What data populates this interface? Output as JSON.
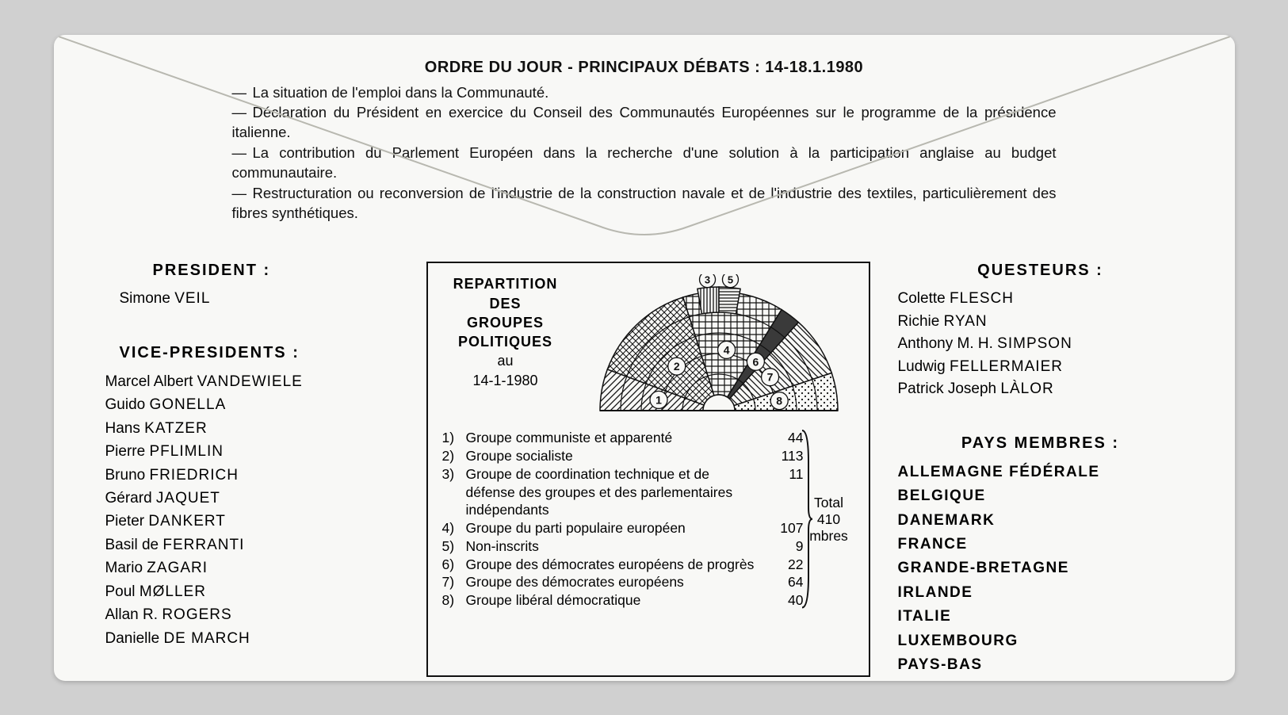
{
  "header": {
    "title": "ORDRE DU JOUR - PRINCIPAUX DÉBATS : 14-18.1.1980",
    "items": [
      "La situation de l'emploi dans la Communauté.",
      "Déclaration du Président en exercice du Conseil des Communautés Européennes sur le programme de la présidence italienne.",
      "La contribution du Parlement Européen dans la recherche d'une solution à la participation anglaise au budget communautaire.",
      "Restructuration ou reconversion de l'industrie de la construction navale et de l'industrie des textiles, particulièrement des fibres synthétiques."
    ]
  },
  "president": {
    "heading": "PRESIDENT :",
    "name_first": "Simone",
    "name_last": "VEIL"
  },
  "vice_presidents": {
    "heading": "VICE-PRESIDENTS :",
    "list": [
      {
        "first": "Marcel Albert",
        "last": "VANDEWIELE"
      },
      {
        "first": "Guido",
        "last": "GONELLA"
      },
      {
        "first": "Hans",
        "last": "KATZER"
      },
      {
        "first": "Pierre",
        "last": "PFLIMLIN"
      },
      {
        "first": "Bruno",
        "last": "FRIEDRICH"
      },
      {
        "first": "Gérard",
        "last": "JAQUET"
      },
      {
        "first": "Pieter",
        "last": "DANKERT"
      },
      {
        "first": "Basil de",
        "last": "FERRANTI"
      },
      {
        "first": "Mario",
        "last": "ZAGARI"
      },
      {
        "first": "Poul",
        "last": "MØLLER"
      },
      {
        "first": "Allan R.",
        "last": "ROGERS"
      },
      {
        "first": "Danielle",
        "last": "DE MARCH"
      }
    ]
  },
  "questeurs": {
    "heading": "QUESTEURS :",
    "list": [
      {
        "first": "Colette",
        "last": "FLESCH"
      },
      {
        "first": "Richie",
        "last": "RYAN"
      },
      {
        "first": "Anthony M. H.",
        "last": "SIMPSON"
      },
      {
        "first": "Ludwig",
        "last": "FELLERMAIER"
      },
      {
        "first": "Patrick Joseph",
        "last": "LÀLOR"
      }
    ]
  },
  "pays_membres": {
    "heading": "PAYS MEMBRES :",
    "list": [
      "ALLEMAGNE FÉDÉRALE",
      "BELGIQUE",
      "DANEMARK",
      "FRANCE",
      "GRANDE-BRETAGNE",
      "IRLANDE",
      "ITALIE",
      "LUXEMBOURG",
      "PAYS-BAS"
    ]
  },
  "chart": {
    "title_l1": "REPARTITION",
    "title_l2": "DES",
    "title_l3": "GROUPES",
    "title_l4": "POLITIQUES",
    "title_au": "au",
    "title_date": "14-1-1980",
    "total_label": "Total",
    "total_value": "410",
    "total_unit": "mbres",
    "type": "hemicycle",
    "background": "#f8f8f6",
    "border_color": "#111111",
    "groups": [
      {
        "n": "1",
        "label": "Groupe communiste et apparenté",
        "value": 44,
        "pattern": "diag-left"
      },
      {
        "n": "2",
        "label": "Groupe socialiste",
        "value": 113,
        "pattern": "cross"
      },
      {
        "n": "3",
        "label": "Groupe de coordination technique et de défense des groupes et des parlementaires indépendants",
        "value": 11,
        "pattern": "vert"
      },
      {
        "n": "4",
        "label": "Groupe du parti populaire européen",
        "value": 107,
        "pattern": "grid"
      },
      {
        "n": "5",
        "label": "Non-inscrits",
        "value": 9,
        "pattern": "horiz"
      },
      {
        "n": "6",
        "label": "Groupe des démocrates européens de progrès",
        "value": 22,
        "pattern": "solid-dark"
      },
      {
        "n": "7",
        "label": "Groupe des démocrates européens",
        "value": 64,
        "pattern": "diag-right"
      },
      {
        "n": "8",
        "label": "Groupe libéral démocratique",
        "value": 40,
        "pattern": "dots"
      }
    ],
    "layout_order": [
      1,
      2,
      3,
      4,
      5,
      6,
      7,
      8
    ],
    "top_small_slots": [
      3,
      5
    ]
  }
}
